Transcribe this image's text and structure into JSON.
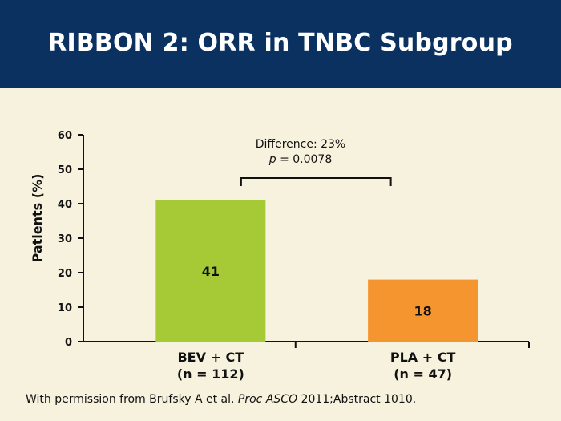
{
  "slide": {
    "title": "RIBBON 2: ORR in TNBC Subgroup",
    "colors": {
      "header_bg": "#0b3161",
      "slide_bg": "#f6f2dd"
    }
  },
  "chart_data": {
    "type": "bar",
    "ylabel": "Patients (%)",
    "ylim": [
      0,
      60
    ],
    "yticks": [
      0,
      10,
      20,
      30,
      40,
      50,
      60
    ],
    "categories": [
      {
        "line1": "BEV + CT",
        "line2": "(n = 112)"
      },
      {
        "line1": "PLA + CT",
        "line2": "(n = 47)"
      }
    ],
    "values": [
      41,
      18
    ],
    "bar_colors": [
      "#a6ca36",
      "#f5952f"
    ],
    "annotation": {
      "line1": "Difference: 23%",
      "p_symbol": "p",
      "p_rest": " = 0.0078"
    }
  },
  "footer": {
    "prefix": "With permission from Brufsky A et al. ",
    "journal": "Proc ASCO",
    "suffix": " 2011;Abstract 1010."
  }
}
